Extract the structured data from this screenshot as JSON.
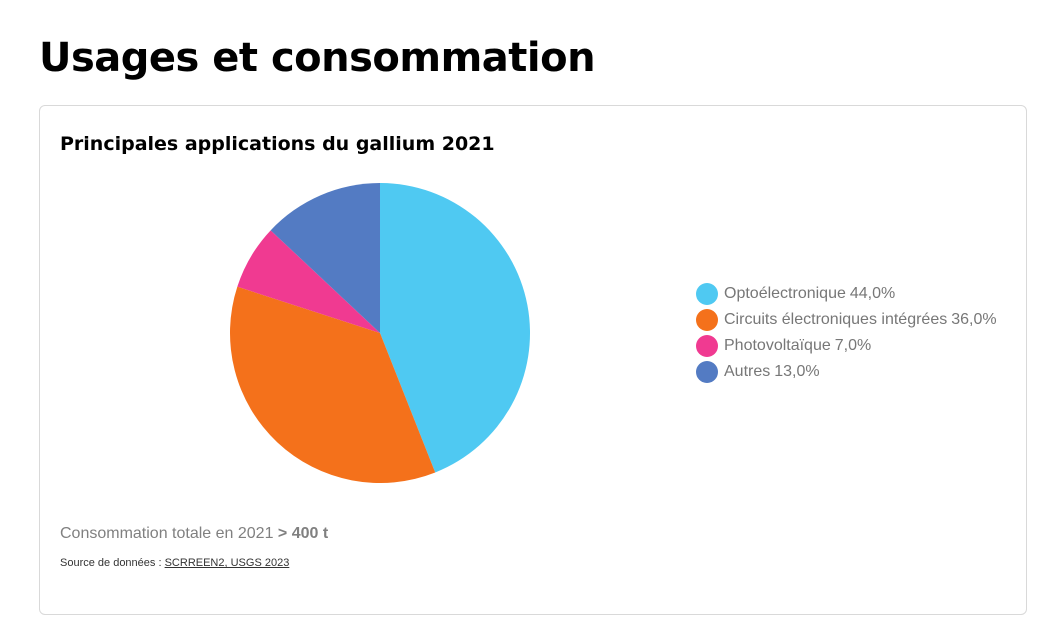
{
  "header": {
    "title": "Usages et consommation"
  },
  "chart_data": {
    "type": "pie",
    "title": "Principales applications du gallium 2021",
    "slices": [
      {
        "label": "Optoélectronique",
        "value_text": "44,0%",
        "value": 44.0,
        "color": "#4fc9f2"
      },
      {
        "label": "Circuits électroniques intégrées",
        "value_text": "36,0%",
        "value": 36.0,
        "color": "#f4711b"
      },
      {
        "label": "Photovoltaïque ",
        "value_text": "7,0%",
        "value": 7.0,
        "color": "#f03a91"
      },
      {
        "label": "Autres",
        "value_text": "13,0%",
        "value": 13.0,
        "color": "#537bc3"
      }
    ],
    "legend_position": "right"
  },
  "footer": {
    "total_label": "Consommation totale en 2021",
    "total_value": "> 400 t",
    "source_label": "Source de données :",
    "source_link": "SCRREEN2, USGS 2023"
  }
}
